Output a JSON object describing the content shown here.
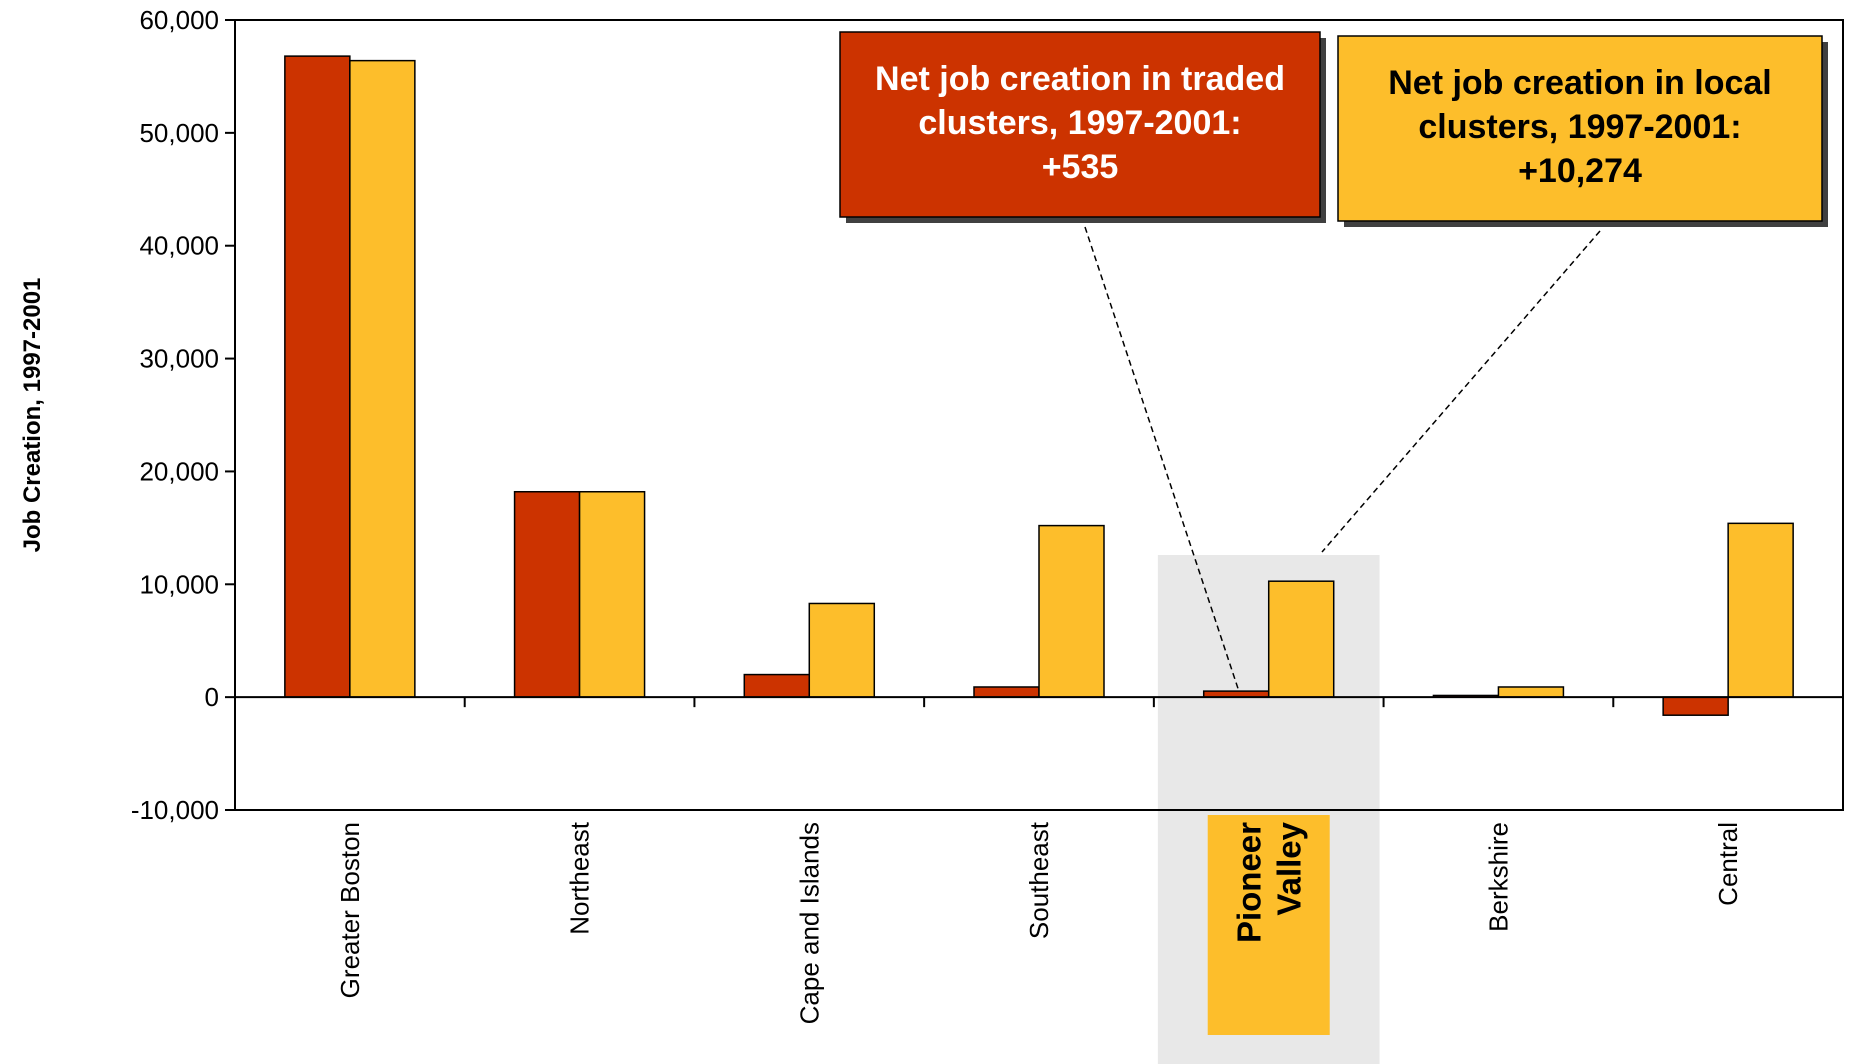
{
  "chart_data": {
    "type": "bar",
    "ylabel": "Job Creation, 1997-2001",
    "ylim": [
      -10000,
      60000
    ],
    "yticks": [
      -10000,
      0,
      10000,
      20000,
      30000,
      40000,
      50000,
      60000
    ],
    "ytick_labels": [
      "-10,000",
      "0",
      "10,000",
      "20,000",
      "30,000",
      "40,000",
      "50,000",
      "60,000"
    ],
    "categories": [
      "Greater Boston",
      "Northeast",
      "Cape and Islands",
      "Southeast",
      "Pioneer Valley",
      "Berkshire",
      "Central"
    ],
    "highlighted_category": "Pioneer Valley",
    "highlighted_label_lines": [
      "Pioneer",
      "Valley"
    ],
    "series": [
      {
        "key": "traded",
        "color": "#CC3300",
        "values": [
          56800,
          18200,
          2000,
          900,
          535,
          150,
          -1600
        ]
      },
      {
        "key": "local",
        "color": "#FDBE2B",
        "values": [
          56400,
          18200,
          8300,
          15200,
          10274,
          900,
          15400
        ]
      }
    ],
    "annotations": [
      {
        "key": "traded",
        "lines": [
          "Net job creation in traded",
          "clusters, 1997-2001:",
          "+535"
        ]
      },
      {
        "key": "local",
        "lines": [
          "Net job creation in local",
          "clusters, 1997-2001:",
          "+10,274"
        ]
      }
    ],
    "grid": false,
    "legend": "none"
  }
}
